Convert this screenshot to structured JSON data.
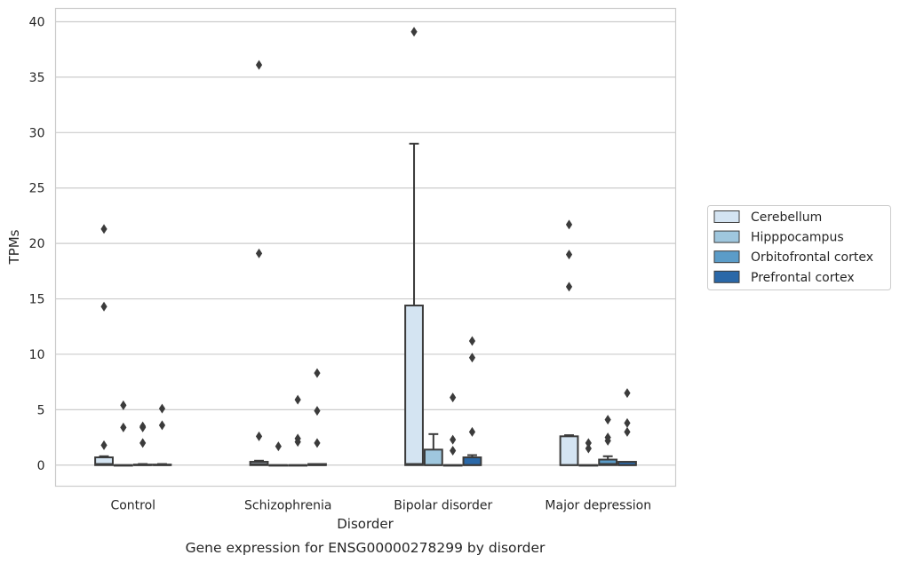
{
  "chart_data": {
    "type": "box",
    "title": "Gene expression for ENSG00000278299 by disorder",
    "xlabel": "Disorder",
    "ylabel": "TPMs",
    "ylim": [
      -1.9,
      41.2
    ],
    "yticks": [
      0,
      5,
      10,
      15,
      20,
      25,
      30,
      35,
      40
    ],
    "grid": "horizontal",
    "legend_position": "right",
    "categories": [
      "Control",
      "Schizophrenia",
      "Bipolar disorder",
      "Major depression"
    ],
    "series": [
      {
        "name": "Cerebellum",
        "color": "#d4e4f2",
        "boxes": [
          {
            "q1": 0,
            "median": 0.1,
            "q3": 0.7,
            "whisker_low": 0,
            "whisker_high": 0.8,
            "outliers": [
              1.8,
              14.3,
              21.3
            ]
          },
          {
            "q1": 0,
            "median": 0.1,
            "q3": 0.3,
            "whisker_low": 0,
            "whisker_high": 0.4,
            "outliers": [
              2.6,
              19.1,
              36.1
            ]
          },
          {
            "q1": 0,
            "median": 0.1,
            "q3": 14.4,
            "whisker_low": 0,
            "whisker_high": 29.0,
            "outliers": [
              39.1
            ]
          },
          {
            "q1": 0,
            "median": 0,
            "q3": 2.6,
            "whisker_low": 0,
            "whisker_high": 2.7,
            "outliers": [
              16.1,
              19.0,
              21.7
            ]
          }
        ]
      },
      {
        "name": "Hipppocampus",
        "color": "#9fc7de",
        "boxes": [
          {
            "q1": 0,
            "median": 0,
            "q3": 0,
            "whisker_low": 0,
            "whisker_high": 0,
            "outliers": [
              3.4,
              5.4
            ]
          },
          {
            "q1": 0,
            "median": 0,
            "q3": 0,
            "whisker_low": 0,
            "whisker_high": 0,
            "outliers": [
              1.7
            ]
          },
          {
            "q1": 0,
            "median": 0,
            "q3": 1.4,
            "whisker_low": 0,
            "whisker_high": 2.8,
            "outliers": []
          },
          {
            "q1": 0,
            "median": 0,
            "q3": 0,
            "whisker_low": 0,
            "whisker_high": 0,
            "outliers": [
              1.5,
              2.0
            ]
          }
        ]
      },
      {
        "name": "Orbitofrontal cortex",
        "color": "#5b9cc8",
        "boxes": [
          {
            "q1": 0,
            "median": 0,
            "q3": 0.05,
            "whisker_low": 0,
            "whisker_high": 0.1,
            "outliers": [
              2.0,
              3.4,
              3.5
            ]
          },
          {
            "q1": 0,
            "median": 0,
            "q3": 0,
            "whisker_low": 0,
            "whisker_high": 0,
            "outliers": [
              2.1,
              2.4,
              5.9
            ]
          },
          {
            "q1": 0,
            "median": 0,
            "q3": 0,
            "whisker_low": 0,
            "whisker_high": 0,
            "outliers": [
              1.3,
              2.3,
              6.1
            ]
          },
          {
            "q1": 0,
            "median": 0.1,
            "q3": 0.5,
            "whisker_low": 0,
            "whisker_high": 0.8,
            "outliers": [
              2.2,
              2.5,
              4.1
            ]
          }
        ]
      },
      {
        "name": "Prefrontal cortex",
        "color": "#2a68a8",
        "boxes": [
          {
            "q1": 0,
            "median": 0,
            "q3": 0.05,
            "whisker_low": 0,
            "whisker_high": 0.1,
            "outliers": [
              3.6,
              5.1
            ]
          },
          {
            "q1": 0,
            "median": 0,
            "q3": 0.1,
            "whisker_low": 0,
            "whisker_high": 0.1,
            "outliers": [
              2.0,
              4.9,
              8.3
            ]
          },
          {
            "q1": 0,
            "median": 0,
            "q3": 0.7,
            "whisker_low": 0,
            "whisker_high": 0.9,
            "outliers": [
              3.0,
              9.7,
              11.2
            ]
          },
          {
            "q1": 0,
            "median": 0,
            "q3": 0.3,
            "whisker_low": 0,
            "whisker_high": 0.3,
            "outliers": [
              3.0,
              3.8,
              6.5
            ]
          }
        ]
      }
    ]
  }
}
